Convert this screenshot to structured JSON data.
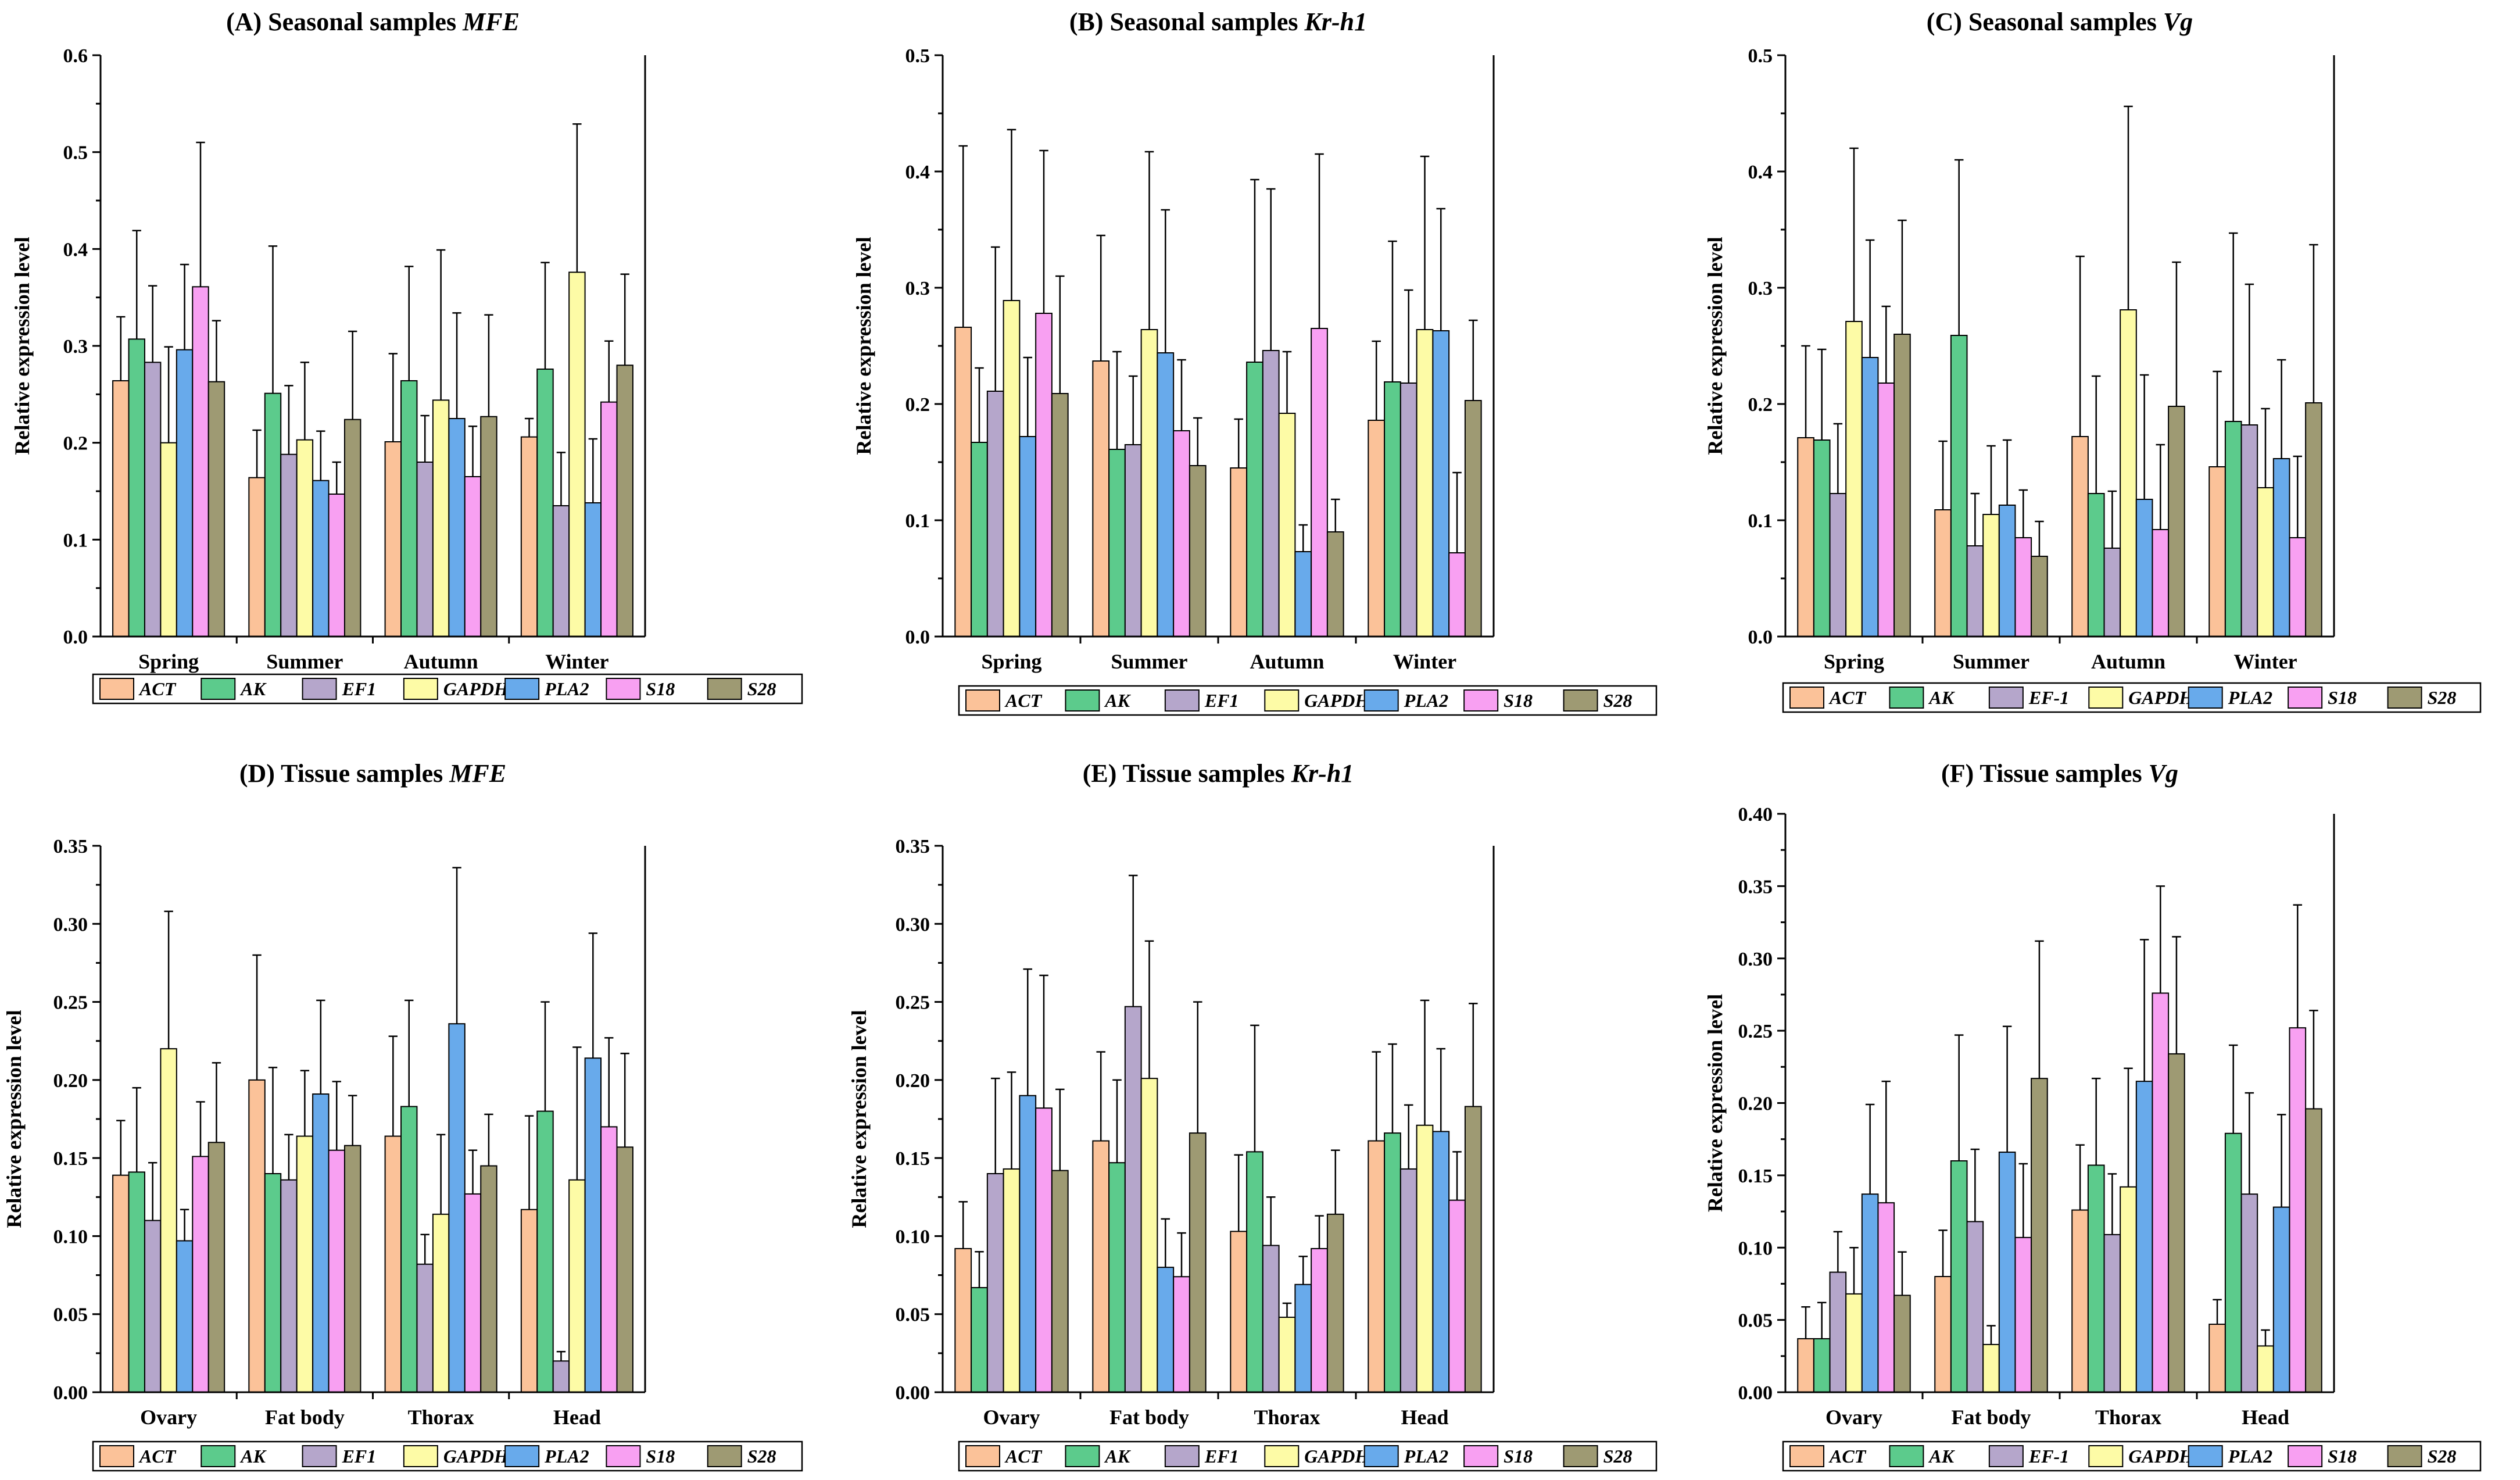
{
  "series_colors": {
    "ACT": "#FBC299",
    "AK": "#5CCB8C",
    "EF1": "#B5A6CB",
    "EF-1": "#B5A6CB",
    "GAPDH": "#FDFBA6",
    "PLA2": "#68AAEB",
    "S18": "#F8A0F2",
    "S28": "#9E9A73"
  },
  "chart_data": [
    {
      "id": "A",
      "type": "bar",
      "title": "(A) Seasonal samples ",
      "gene": "MFE",
      "xlabel": "",
      "ylabel": "Relative expression level",
      "ylim": [
        0,
        0.6
      ],
      "ticks": [
        "0.0",
        "0.1",
        "0.2",
        "0.3",
        "0.4",
        "0.5",
        "0.6"
      ],
      "categories": [
        "Spring",
        "Summer",
        "Autumn",
        "Winter"
      ],
      "series": [
        {
          "name": "ACT",
          "values": [
            0.264,
            0.164,
            0.201,
            0.206
          ],
          "errors": [
            0.066,
            0.049,
            0.091,
            0.019
          ]
        },
        {
          "name": "AK",
          "values": [
            0.307,
            0.251,
            0.264,
            0.276
          ],
          "errors": [
            0.112,
            0.152,
            0.118,
            0.11
          ]
        },
        {
          "name": "EF1",
          "values": [
            0.283,
            0.188,
            0.18,
            0.135
          ],
          "errors": [
            0.079,
            0.071,
            0.048,
            0.055
          ]
        },
        {
          "name": "GAPDH",
          "values": [
            0.2,
            0.203,
            0.244,
            0.376
          ],
          "errors": [
            0.099,
            0.08,
            0.155,
            0.153
          ]
        },
        {
          "name": "PLA2",
          "values": [
            0.296,
            0.161,
            0.225,
            0.138
          ],
          "errors": [
            0.088,
            0.051,
            0.109,
            0.066
          ]
        },
        {
          "name": "S18",
          "values": [
            0.361,
            0.147,
            0.165,
            0.242
          ],
          "errors": [
            0.149,
            0.033,
            0.052,
            0.063
          ]
        },
        {
          "name": "S28",
          "values": [
            0.263,
            0.224,
            0.227,
            0.28
          ],
          "errors": [
            0.063,
            0.091,
            0.105,
            0.094
          ]
        }
      ]
    },
    {
      "id": "B",
      "type": "bar",
      "title": "(B) Seasonal samples ",
      "gene": "Kr-h1",
      "xlabel": "",
      "ylabel": "Relative expression level",
      "ylim": [
        0,
        0.5
      ],
      "ticks": [
        "0.0",
        "0.1",
        "0.2",
        "0.3",
        "0.4",
        "0.5"
      ],
      "categories": [
        "Spring",
        "Summer",
        "Autumn",
        "Winter"
      ],
      "series": [
        {
          "name": "ACT",
          "values": [
            0.266,
            0.237,
            0.145,
            0.186
          ],
          "errors": [
            0.156,
            0.108,
            0.042,
            0.068
          ]
        },
        {
          "name": "AK",
          "values": [
            0.167,
            0.161,
            0.236,
            0.219
          ],
          "errors": [
            0.064,
            0.084,
            0.157,
            0.121
          ]
        },
        {
          "name": "EF1",
          "values": [
            0.211,
            0.165,
            0.246,
            0.218
          ],
          "errors": [
            0.124,
            0.059,
            0.139,
            0.08
          ]
        },
        {
          "name": "GAPDH",
          "values": [
            0.289,
            0.264,
            0.192,
            0.264
          ],
          "errors": [
            0.147,
            0.153,
            0.053,
            0.149
          ]
        },
        {
          "name": "PLA2",
          "values": [
            0.172,
            0.244,
            0.073,
            0.263
          ],
          "errors": [
            0.068,
            0.123,
            0.023,
            0.105
          ]
        },
        {
          "name": "S18",
          "values": [
            0.278,
            0.177,
            0.265,
            0.072
          ],
          "errors": [
            0.14,
            0.061,
            0.15,
            0.069
          ]
        },
        {
          "name": "S28",
          "values": [
            0.209,
            0.147,
            0.09,
            0.203
          ],
          "errors": [
            0.101,
            0.041,
            0.028,
            0.069
          ]
        }
      ]
    },
    {
      "id": "C",
      "type": "bar",
      "title": "(C) Seasonal samples ",
      "gene": "Vg",
      "xlabel": "",
      "ylabel": "Relative expression level",
      "ylim": [
        0,
        0.5
      ],
      "ticks": [
        "0.0",
        "0.1",
        "0.2",
        "0.3",
        "0.4",
        "0.5"
      ],
      "categories": [
        "Spring",
        "Summer",
        "Autumn",
        "Winter"
      ],
      "series": [
        {
          "name": "ACT",
          "values": [
            0.171,
            0.109,
            0.172,
            0.146
          ],
          "errors": [
            0.079,
            0.059,
            0.155,
            0.082
          ]
        },
        {
          "name": "AK",
          "values": [
            0.169,
            0.259,
            0.123,
            0.185
          ],
          "errors": [
            0.078,
            0.151,
            0.101,
            0.162
          ]
        },
        {
          "name": "EF-1",
          "values": [
            0.123,
            0.078,
            0.076,
            0.182
          ],
          "errors": [
            0.06,
            0.045,
            0.049,
            0.121
          ]
        },
        {
          "name": "GAPDH",
          "values": [
            0.271,
            0.105,
            0.281,
            0.128
          ],
          "errors": [
            0.149,
            0.059,
            0.175,
            0.068
          ]
        },
        {
          "name": "PLA2",
          "values": [
            0.24,
            0.113,
            0.118,
            0.153
          ],
          "errors": [
            0.101,
            0.056,
            0.107,
            0.085
          ]
        },
        {
          "name": "S18",
          "values": [
            0.218,
            0.085,
            0.092,
            0.085
          ],
          "errors": [
            0.066,
            0.041,
            0.073,
            0.07
          ]
        },
        {
          "name": "S28",
          "values": [
            0.26,
            0.069,
            0.198,
            0.201
          ],
          "errors": [
            0.098,
            0.03,
            0.124,
            0.136
          ]
        }
      ]
    },
    {
      "id": "D",
      "type": "bar",
      "title": "(D) Tissue samples ",
      "gene": "MFE",
      "xlabel": "",
      "ylabel": "Relative expression level",
      "ylim": [
        0,
        0.35
      ],
      "ticks": [
        "0.00",
        "0.05",
        "0.10",
        "0.15",
        "0.20",
        "0.25",
        "0.30",
        "0.35"
      ],
      "categories": [
        "Ovary",
        "Fat body",
        "Thorax",
        "Head"
      ],
      "series": [
        {
          "name": "ACT",
          "values": [
            0.139,
            0.2,
            0.164,
            0.117
          ],
          "errors": [
            0.035,
            0.08,
            0.064,
            0.06
          ]
        },
        {
          "name": "AK",
          "values": [
            0.141,
            0.14,
            0.183,
            0.18
          ],
          "errors": [
            0.054,
            0.068,
            0.068,
            0.07
          ]
        },
        {
          "name": "EF1",
          "values": [
            0.11,
            0.136,
            0.082,
            0.02
          ],
          "errors": [
            0.037,
            0.029,
            0.019,
            0.006
          ]
        },
        {
          "name": "GAPDH",
          "values": [
            0.22,
            0.164,
            0.114,
            0.136
          ],
          "errors": [
            0.088,
            0.042,
            0.051,
            0.085
          ]
        },
        {
          "name": "PLA2",
          "values": [
            0.097,
            0.191,
            0.236,
            0.214
          ],
          "errors": [
            0.02,
            0.06,
            0.1,
            0.08
          ]
        },
        {
          "name": "S18",
          "values": [
            0.151,
            0.155,
            0.127,
            0.17
          ],
          "errors": [
            0.035,
            0.044,
            0.028,
            0.057
          ]
        },
        {
          "name": "S28",
          "values": [
            0.16,
            0.158,
            0.145,
            0.157
          ],
          "errors": [
            0.051,
            0.032,
            0.033,
            0.06
          ]
        }
      ]
    },
    {
      "id": "E",
      "type": "bar",
      "title": "(E) Tissue samples ",
      "gene": "Kr-h1",
      "xlabel": "",
      "ylabel": "Relative expression level",
      "ylim": [
        0,
        0.35
      ],
      "ticks": [
        "0.00",
        "0.05",
        "0.10",
        "0.15",
        "0.20",
        "0.25",
        "0.30",
        "0.35"
      ],
      "categories": [
        "Ovary",
        "Fat body",
        "Thorax",
        "Head"
      ],
      "series": [
        {
          "name": "ACT",
          "values": [
            0.092,
            0.161,
            0.103,
            0.161
          ],
          "errors": [
            0.03,
            0.057,
            0.049,
            0.057
          ]
        },
        {
          "name": "AK",
          "values": [
            0.067,
            0.147,
            0.154,
            0.166
          ],
          "errors": [
            0.023,
            0.053,
            0.081,
            0.057
          ]
        },
        {
          "name": "EF1",
          "values": [
            0.14,
            0.247,
            0.094,
            0.143
          ],
          "errors": [
            0.061,
            0.084,
            0.031,
            0.041
          ]
        },
        {
          "name": "GAPDH",
          "values": [
            0.143,
            0.201,
            0.048,
            0.171
          ],
          "errors": [
            0.062,
            0.088,
            0.009,
            0.08
          ]
        },
        {
          "name": "PLA2",
          "values": [
            0.19,
            0.08,
            0.069,
            0.167
          ],
          "errors": [
            0.081,
            0.031,
            0.018,
            0.053
          ]
        },
        {
          "name": "S18",
          "values": [
            0.182,
            0.074,
            0.092,
            0.123
          ],
          "errors": [
            0.085,
            0.028,
            0.021,
            0.031
          ]
        },
        {
          "name": "S28",
          "values": [
            0.142,
            0.166,
            0.114,
            0.183
          ],
          "errors": [
            0.052,
            0.084,
            0.041,
            0.066
          ]
        }
      ]
    },
    {
      "id": "F",
      "type": "bar",
      "title": "(F) Tissue samples ",
      "gene": "Vg",
      "xlabel": "",
      "ylabel": "Relative expression level",
      "ylim": [
        0,
        0.4
      ],
      "ticks": [
        "0.00",
        "0.05",
        "0.10",
        "0.15",
        "0.20",
        "0.25",
        "0.30",
        "0.35",
        "0.40"
      ],
      "categories": [
        "Ovary",
        "Fat body",
        "Thorax",
        "Head"
      ],
      "series": [
        {
          "name": "ACT",
          "values": [
            0.037,
            0.08,
            0.126,
            0.047
          ],
          "errors": [
            0.022,
            0.032,
            0.045,
            0.017
          ]
        },
        {
          "name": "AK",
          "values": [
            0.037,
            0.16,
            0.157,
            0.179
          ],
          "errors": [
            0.025,
            0.087,
            0.06,
            0.061
          ]
        },
        {
          "name": "EF-1",
          "values": [
            0.083,
            0.118,
            0.109,
            0.137
          ],
          "errors": [
            0.028,
            0.05,
            0.042,
            0.07
          ]
        },
        {
          "name": "GAPDH",
          "values": [
            0.068,
            0.033,
            0.142,
            0.032
          ],
          "errors": [
            0.032,
            0.013,
            0.082,
            0.011
          ]
        },
        {
          "name": "PLA2",
          "values": [
            0.137,
            0.166,
            0.215,
            0.128
          ],
          "errors": [
            0.062,
            0.087,
            0.098,
            0.064
          ]
        },
        {
          "name": "S18",
          "values": [
            0.131,
            0.107,
            0.276,
            0.252
          ],
          "errors": [
            0.084,
            0.051,
            0.074,
            0.085
          ]
        },
        {
          "name": "S28",
          "values": [
            0.067,
            0.217,
            0.234,
            0.196
          ],
          "errors": [
            0.03,
            0.095,
            0.081,
            0.068
          ]
        }
      ]
    }
  ]
}
